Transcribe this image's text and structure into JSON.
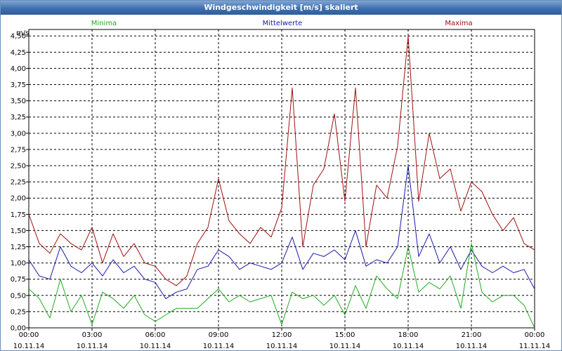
{
  "window": {
    "title": "Windgeschwindigkeit [m/s] skaliert"
  },
  "chart_data": {
    "type": "line",
    "title": "Windgeschwindigkeit [m/s] skaliert",
    "ylabel": "m/s",
    "ylim": [
      0,
      4.6
    ],
    "xlim": [
      0,
      24
    ],
    "y_ticks": [
      0.0,
      0.25,
      0.5,
      0.75,
      1.0,
      1.25,
      1.5,
      1.75,
      2.0,
      2.25,
      2.5,
      2.75,
      3.0,
      3.25,
      3.5,
      3.75,
      4.0,
      4.25,
      4.5
    ],
    "y_tick_labels": [
      "0,00",
      "0,25",
      "0,50",
      "0,75",
      "1,00",
      "1,25",
      "1,50",
      "1,75",
      "2,00",
      "2,25",
      "2,50",
      "2,75",
      "3,00",
      "3,25",
      "3,50",
      "3,75",
      "4,00",
      "4,25",
      "4,50"
    ],
    "x_ticks": [
      {
        "hour": 0,
        "time": "00:00",
        "date": "10.11.14"
      },
      {
        "hour": 3,
        "time": "03:00",
        "date": "10.11.14"
      },
      {
        "hour": 6,
        "time": "06:00",
        "date": "10.11.14"
      },
      {
        "hour": 9,
        "time": "09:00",
        "date": "10.11.14"
      },
      {
        "hour": 12,
        "time": "12:00",
        "date": "10.11.14"
      },
      {
        "hour": 15,
        "time": "15:00",
        "date": "10.11.14"
      },
      {
        "hour": 18,
        "time": "18:00",
        "date": "10.11.14"
      },
      {
        "hour": 21,
        "time": "21:00",
        "date": "10.11.14"
      },
      {
        "hour": 24,
        "time": "00:00",
        "date": "11.11.14"
      }
    ],
    "grid": true,
    "legend": [
      {
        "name": "Minima",
        "color": "#22aa22"
      },
      {
        "name": "Mittelwerte",
        "color": "#1a1aaa"
      },
      {
        "name": "Maxima",
        "color": "#a01010"
      }
    ],
    "series": [
      {
        "name": "Maxima",
        "color": "#a01010",
        "x": [
          0,
          0.5,
          1,
          1.5,
          2,
          2.5,
          3,
          3.5,
          4,
          4.5,
          5,
          5.5,
          6,
          6.5,
          7,
          7.5,
          8,
          8.5,
          9,
          9.5,
          10,
          10.5,
          11,
          11.5,
          12,
          12.5,
          13,
          13.5,
          14,
          14.5,
          15,
          15.5,
          16,
          16.5,
          17,
          17.5,
          18,
          18.5,
          19,
          19.5,
          20,
          20.5,
          21,
          21.5,
          22,
          22.5,
          23,
          23.5,
          24
        ],
        "values": [
          1.75,
          1.3,
          1.15,
          1.45,
          1.3,
          1.2,
          1.55,
          1.0,
          1.45,
          1.1,
          1.3,
          1.0,
          0.95,
          0.75,
          0.65,
          0.8,
          1.3,
          1.55,
          2.3,
          1.65,
          1.45,
          1.3,
          1.55,
          1.4,
          1.85,
          3.7,
          1.25,
          2.2,
          2.45,
          3.3,
          1.95,
          3.7,
          1.25,
          2.2,
          2.0,
          2.8,
          4.5,
          1.95,
          3.0,
          2.3,
          2.45,
          1.8,
          2.25,
          2.1,
          1.75,
          1.5,
          1.7,
          1.3,
          1.2
        ]
      },
      {
        "name": "Mittelwerte",
        "color": "#1a1aaa",
        "x": [
          0,
          0.5,
          1,
          1.5,
          2,
          2.5,
          3,
          3.5,
          4,
          4.5,
          5,
          5.5,
          6,
          6.5,
          7,
          7.5,
          8,
          8.5,
          9,
          9.5,
          10,
          10.5,
          11,
          11.5,
          12,
          12.5,
          13,
          13.5,
          14,
          14.5,
          15,
          15.5,
          16,
          16.5,
          17,
          17.5,
          18,
          18.5,
          19,
          19.5,
          20,
          20.5,
          21,
          21.5,
          22,
          22.5,
          23,
          23.5,
          24
        ],
        "values": [
          1.05,
          0.8,
          0.75,
          1.25,
          0.95,
          0.85,
          1.0,
          0.8,
          1.05,
          0.85,
          0.95,
          0.75,
          0.7,
          0.45,
          0.55,
          0.6,
          0.9,
          0.95,
          1.2,
          1.1,
          0.9,
          1.0,
          0.95,
          0.9,
          1.0,
          1.4,
          0.9,
          1.15,
          1.1,
          1.2,
          1.05,
          1.5,
          0.95,
          1.05,
          1.0,
          1.25,
          2.5,
          1.1,
          1.45,
          1.0,
          1.25,
          0.9,
          1.2,
          0.95,
          0.85,
          0.95,
          0.85,
          0.9,
          0.6
        ]
      },
      {
        "name": "Minima",
        "color": "#22aa22",
        "x": [
          0,
          0.5,
          1,
          1.5,
          2,
          2.5,
          3,
          3.5,
          4,
          4.5,
          5,
          5.5,
          6,
          6.5,
          7,
          7.5,
          8,
          8.5,
          9,
          9.5,
          10,
          10.5,
          11,
          11.5,
          12,
          12.5,
          13,
          13.5,
          14,
          14.5,
          15,
          15.5,
          16,
          16.5,
          17,
          17.5,
          18,
          18.5,
          19,
          19.5,
          20,
          20.5,
          21,
          21.5,
          22,
          22.5,
          23,
          23.5,
          24
        ],
        "values": [
          0.6,
          0.45,
          0.15,
          0.75,
          0.25,
          0.5,
          0.05,
          0.55,
          0.45,
          0.3,
          0.5,
          0.2,
          0.1,
          0.2,
          0.3,
          0.3,
          0.3,
          0.45,
          0.6,
          0.4,
          0.5,
          0.4,
          0.45,
          0.5,
          0.05,
          0.55,
          0.45,
          0.5,
          0.35,
          0.5,
          0.2,
          0.65,
          0.3,
          0.8,
          0.6,
          0.45,
          1.25,
          0.55,
          0.7,
          0.6,
          0.8,
          0.3,
          1.3,
          0.55,
          0.4,
          0.5,
          0.5,
          0.35,
          0.0
        ]
      }
    ]
  }
}
